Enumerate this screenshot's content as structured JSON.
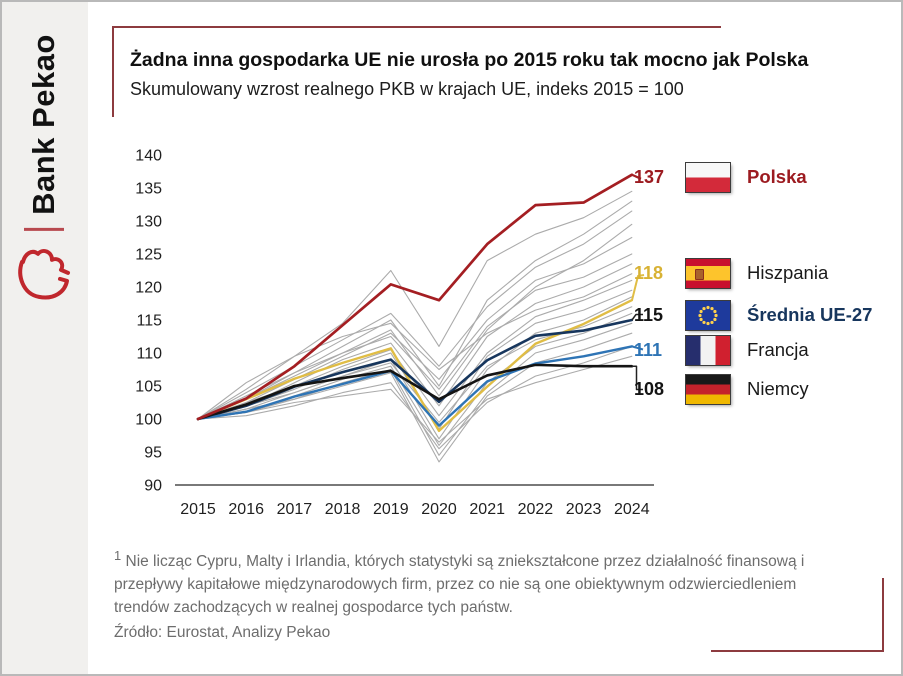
{
  "brand": {
    "name": "Bank Pekao",
    "logo_icon": "bison-icon",
    "logo_color": "#c0272d"
  },
  "header": {
    "title": "Żadna inna gospodarka UE nie urosła po 2015 roku tak mocno jak Polska",
    "subtitle": "Skumulowany wzrost realnego PKB w krajach UE, indeks 2015 = 100"
  },
  "chart_data": {
    "type": "line",
    "title": "Żadna inna gospodarka UE nie urosła po 2015 roku tak mocno jak Polska",
    "subtitle": "Skumulowany wzrost realnego PKB w krajach UE, indeks 2015 = 100",
    "xlabel": "",
    "ylabel": "",
    "ylim": [
      90,
      140
    ],
    "ytick_step": 5,
    "yticks": [
      140,
      135,
      130,
      125,
      120,
      115,
      110,
      105,
      100,
      95,
      90
    ],
    "grid": false,
    "legend_position": "right",
    "categories": [
      "2015",
      "2016",
      "2017",
      "2018",
      "2019",
      "2020",
      "2021",
      "2022",
      "2023",
      "2024"
    ],
    "series": [
      {
        "name": "Polska",
        "color": "#a41e22",
        "width": 2.7,
        "final_label": "137",
        "values": [
          100,
          103.1,
          108.0,
          114.2,
          120.4,
          118.0,
          126.5,
          132.4,
          132.8,
          137
        ]
      },
      {
        "name": "Hiszpania",
        "color": "#e0bd45",
        "width": 2.4,
        "final_label": "118",
        "values": [
          100,
          103.0,
          106.1,
          108.5,
          110.7,
          98.2,
          104.9,
          111.4,
          114.4,
          118
        ]
      },
      {
        "name": "Średnia UE-27",
        "color": "#17365d",
        "width": 2.6,
        "final_label": "115",
        "values": [
          100,
          102.0,
          104.9,
          107.1,
          109.0,
          102.6,
          108.9,
          112.6,
          113.4,
          115
        ]
      },
      {
        "name": "Francja",
        "color": "#2e74b5",
        "width": 2.4,
        "final_label": "111",
        "values": [
          100,
          101.1,
          103.4,
          105.3,
          107.3,
          99.0,
          105.7,
          108.4,
          109.5,
          111
        ]
      },
      {
        "name": "Niemcy",
        "color": "#141414",
        "width": 2.6,
        "final_label": "108",
        "values": [
          100,
          102.2,
          105.0,
          106.2,
          107.3,
          103.0,
          106.6,
          108.2,
          108.0,
          108
        ]
      }
    ],
    "background_series_color": "#ababab",
    "background_series": [
      [
        100,
        104.5,
        109.5,
        114.5,
        122.5,
        111.0,
        124.0,
        128.0,
        130.5,
        134.5
      ],
      [
        100,
        103.0,
        107.0,
        111.0,
        115.0,
        105.0,
        118.0,
        124.0,
        128.0,
        133.0
      ],
      [
        100,
        104.0,
        108.0,
        112.0,
        116.0,
        108.0,
        117.0,
        123.0,
        126.5,
        131.5
      ],
      [
        100,
        103.0,
        106.5,
        110.0,
        113.5,
        103.5,
        113.5,
        120.0,
        124.0,
        129.5
      ],
      [
        100,
        102.5,
        106.0,
        109.5,
        113.0,
        106.0,
        115.0,
        121.0,
        123.5,
        127.5
      ],
      [
        100,
        103.5,
        107.0,
        110.0,
        112.5,
        104.5,
        114.0,
        119.5,
        121.5,
        125.0
      ],
      [
        100,
        102.0,
        105.5,
        109.0,
        111.5,
        102.0,
        112.5,
        117.5,
        120.0,
        123.5
      ],
      [
        100,
        105.5,
        109.5,
        112.5,
        114.5,
        107.5,
        113.0,
        116.5,
        118.5,
        122.0
      ],
      [
        100,
        102.5,
        105.0,
        108.0,
        110.5,
        100.5,
        110.0,
        115.5,
        118.0,
        121.0
      ],
      [
        100,
        102.0,
        104.5,
        107.5,
        110.0,
        98.5,
        109.5,
        114.5,
        116.5,
        119.5
      ],
      [
        100,
        101.5,
        104.0,
        106.5,
        109.0,
        97.0,
        107.5,
        113.0,
        115.0,
        118.5
      ],
      [
        100,
        102.0,
        104.0,
        106.5,
        108.5,
        99.5,
        108.0,
        112.0,
        114.0,
        117.0
      ],
      [
        100,
        101.0,
        103.5,
        106.0,
        108.0,
        96.0,
        105.5,
        111.0,
        113.0,
        116.0
      ],
      [
        100,
        101.5,
        103.0,
        105.5,
        107.5,
        94.5,
        104.0,
        110.0,
        112.0,
        114.5
      ],
      [
        100,
        101.0,
        103.0,
        105.0,
        107.0,
        93.5,
        103.5,
        108.5,
        110.5,
        113.0
      ],
      [
        100,
        100.5,
        102.0,
        104.0,
        105.5,
        95.5,
        102.5,
        106.5,
        108.5,
        111.0
      ],
      [
        100,
        101.0,
        102.5,
        103.5,
        104.5,
        96.5,
        103.0,
        105.5,
        107.5,
        109.5
      ]
    ]
  },
  "legend": {
    "items": [
      {
        "value": "137",
        "value_color": "#9c1b20",
        "label": "Polska",
        "label_color": "#9c1b20",
        "label_bold": true,
        "flag": "poland-flag"
      },
      {
        "value": "118",
        "value_color": "#d8b234",
        "label": "Hiszpania",
        "label_color": "#1a1a1a",
        "label_bold": false,
        "flag": "spain-flag"
      },
      {
        "value": "115",
        "value_color": "#141414",
        "label": "Średnia UE-27",
        "label_color": "#17365d",
        "label_bold": true,
        "flag": "eu-flag"
      },
      {
        "value": "111",
        "value_color": "#2e74b5",
        "label": "Francja",
        "label_color": "#1a1a1a",
        "label_bold": false,
        "flag": "france-flag"
      },
      {
        "value": "108",
        "value_color": "#141414",
        "label": "Niemcy",
        "label_color": "#1a1a1a",
        "label_bold": false,
        "flag": "germany-flag"
      }
    ]
  },
  "footnote": {
    "sup": "1",
    "text": " Nie licząc Cypru, Malty i Irlandia, których statystyki są zniekształcone przez działalność finansową i przepływy kapitałowe międzynarodowych firm, przez co nie są one obiektywnym odzwierciedleniem trendów zachodzących w realnej gospodarce tych państw.",
    "source": "Źródło: Eurostat, Analizy Pekao"
  }
}
